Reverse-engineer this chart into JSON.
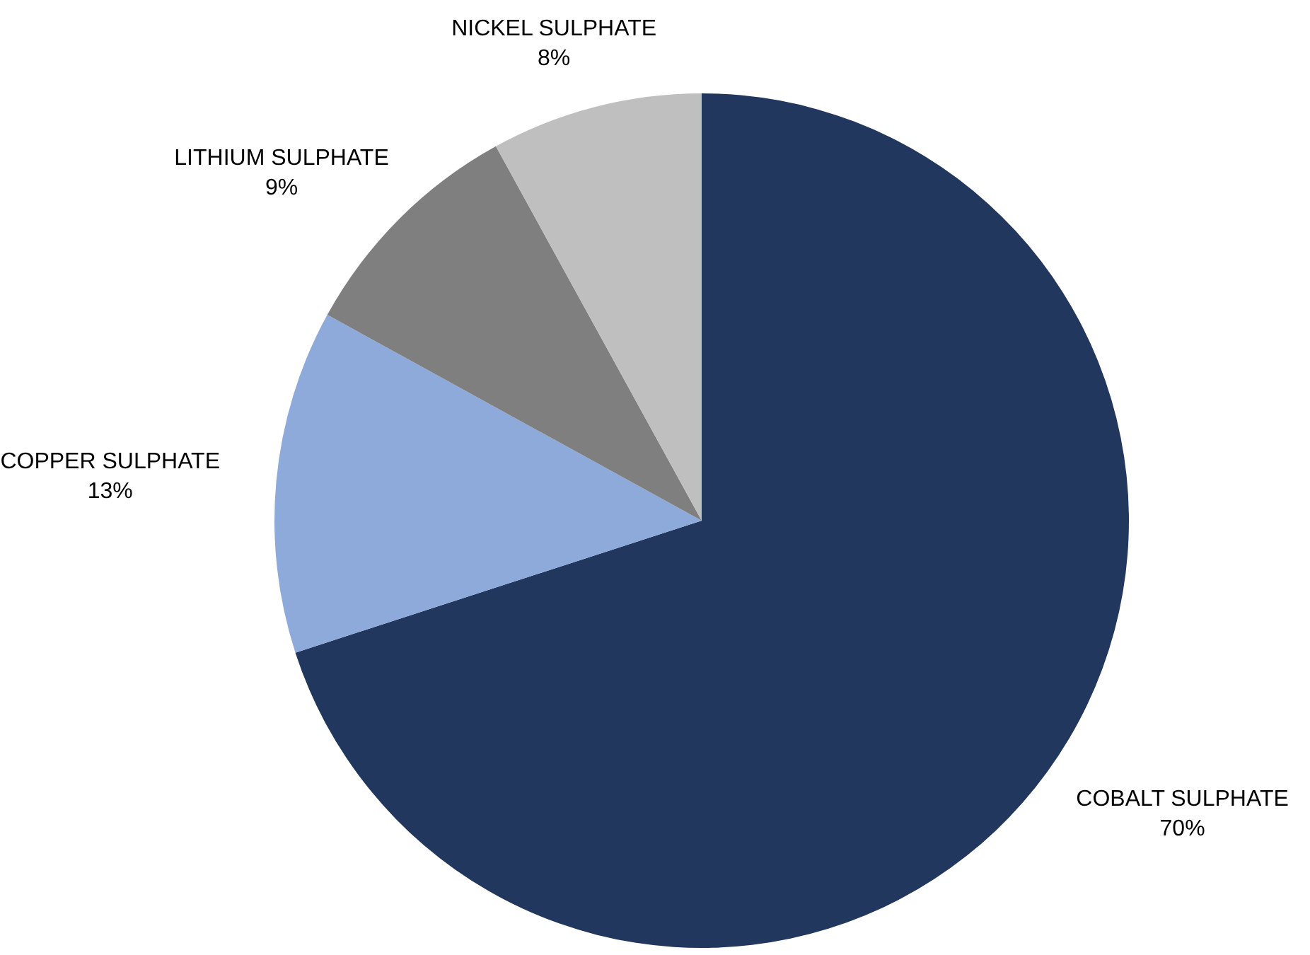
{
  "chart_data": {
    "type": "pie",
    "categories": [
      "COBALT SULPHATE",
      "COPPER SULPHATE",
      "LITHIUM SULPHATE",
      "NICKEL SULPHATE"
    ],
    "values": [
      70,
      13,
      9,
      8
    ],
    "colors": [
      "#22375e",
      "#8eaadb",
      "#7f7f7f",
      "#bfbfbf"
    ],
    "value_labels": [
      "70%",
      "13%",
      "9%",
      "8%"
    ]
  }
}
